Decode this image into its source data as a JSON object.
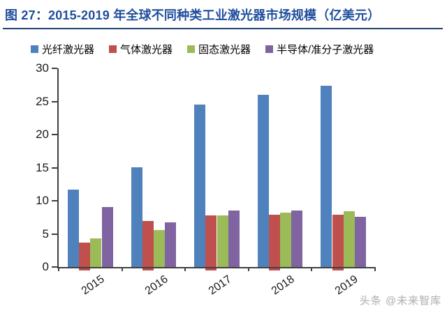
{
  "title": "图 27：2015-2019 年全球不同种类工业激光器市场规模（亿美元）",
  "watermark": "头条 @未来智库",
  "colors": {
    "title": "#1F4E9C",
    "title_underline": "#1F4373",
    "axis": "#3F3F3F",
    "text": "#1a1a1a",
    "watermark": "#b5b5b5"
  },
  "chart_data": {
    "type": "bar",
    "title": "图 27：2015-2019 年全球不同种类工业激光器市场规模（亿美元）",
    "categories": [
      "2015",
      "2016",
      "2017",
      "2018",
      "2019"
    ],
    "series": [
      {
        "name": "光纤激光器",
        "color": "#4F81BD",
        "values": [
          11.7,
          15.1,
          24.5,
          26.0,
          27.4
        ]
      },
      {
        "name": "气体激光器",
        "color": "#C0504D",
        "values": [
          3.7,
          6.9,
          7.8,
          7.9,
          7.9
        ]
      },
      {
        "name": "固态激光器",
        "color": "#9BBB59",
        "values": [
          4.3,
          5.6,
          7.8,
          8.2,
          8.4
        ]
      },
      {
        "name": "半导体/准分子激光器",
        "color": "#8064A2",
        "values": [
          9.1,
          6.7,
          8.5,
          8.5,
          7.6
        ]
      }
    ],
    "xlabel": "",
    "ylabel": "",
    "ylim": [
      0,
      30
    ],
    "yticks": [
      0,
      5,
      10,
      15,
      20,
      25,
      30
    ],
    "grid": false,
    "legend_position": "top"
  }
}
